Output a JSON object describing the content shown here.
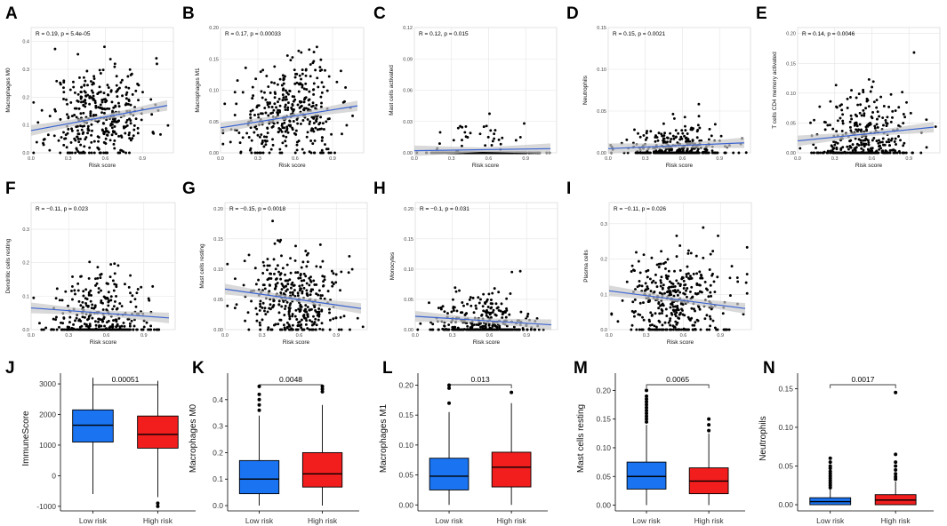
{
  "chart_data": [
    {
      "id": "A",
      "type": "scatter",
      "ylabel": "Macrophages M0",
      "xlabel": "Risk score",
      "stat": "R = 0.19, p = 5.4e-05",
      "xticks": [
        "0.0",
        "0.3",
        "0.6",
        "0.9"
      ],
      "yticks": [
        "0.0",
        "0.1",
        "0.2",
        "0.3",
        "0.4"
      ],
      "xlim": [
        0,
        1.15
      ],
      "ylim": [
        0,
        0.45
      ],
      "fit": [
        [
          0,
          0.08
        ],
        [
          1.1,
          0.17
        ]
      ],
      "dist": {
        "type": "lin",
        "base": 0.1,
        "slope": 0.06,
        "sd": 0.09,
        "n": 380,
        "seed": 11
      }
    },
    {
      "id": "B",
      "type": "scatter",
      "ylabel": "Macrophages M1",
      "xlabel": "Risk score",
      "stat": "R = 0.17, p = 0.00033",
      "xticks": [
        "0.0",
        "0.3",
        "0.6",
        "0.9"
      ],
      "yticks": [
        "0.00",
        "0.05",
        "0.10",
        "0.15",
        "0.20"
      ],
      "xlim": [
        0,
        1.15
      ],
      "ylim": [
        0,
        0.2
      ],
      "fit": [
        [
          0,
          0.04
        ],
        [
          1.1,
          0.075
        ]
      ],
      "dist": {
        "type": "lin",
        "base": 0.045,
        "slope": 0.03,
        "sd": 0.04,
        "n": 380,
        "seed": 22
      }
    },
    {
      "id": "C",
      "type": "scatter",
      "ylabel": "Mast cells activated",
      "xlabel": "Risk score",
      "stat": "R = 0.12, p = 0.015",
      "xticks": [
        "0.0",
        "0.3",
        "0.6",
        "0.9"
      ],
      "yticks": [
        "0.00",
        "0.03",
        "0.06",
        "0.09",
        "0.12"
      ],
      "xlim": [
        0,
        1.15
      ],
      "ylim": [
        0,
        0.12
      ],
      "fit": [
        [
          0,
          0.002
        ],
        [
          1.1,
          0.004
        ]
      ],
      "dist": {
        "type": "zero",
        "pz": 0.9,
        "sd": 0.02,
        "n": 380,
        "seed": 33
      }
    },
    {
      "id": "D",
      "type": "scatter",
      "ylabel": "Neutrophils",
      "xlabel": "Risk score",
      "stat": "R = 0.15, p = 0.0021",
      "xticks": [
        "0.0",
        "0.3",
        "0.6",
        "0.9"
      ],
      "yticks": [
        "0.00",
        "0.05",
        "0.10",
        "0.15"
      ],
      "xlim": [
        0,
        1.15
      ],
      "ylim": [
        0,
        0.15
      ],
      "fit": [
        [
          0,
          0.005
        ],
        [
          1.1,
          0.012
        ]
      ],
      "dist": {
        "type": "zero",
        "pz": 0.4,
        "sd": 0.016,
        "n": 380,
        "seed": 44
      }
    },
    {
      "id": "E",
      "type": "scatter",
      "ylabel": "T cells CD4 memory activated",
      "xlabel": "Risk score",
      "stat": "R = 0.14, p = 0.0046",
      "xticks": [
        "0.0",
        "0.3",
        "0.6",
        "0.9"
      ],
      "yticks": [
        "0.00",
        "0.05",
        "0.10",
        "0.15",
        "0.20"
      ],
      "xlim": [
        0,
        1.15
      ],
      "ylim": [
        0,
        0.21
      ],
      "fit": [
        [
          0,
          0.02
        ],
        [
          1.1,
          0.043
        ]
      ],
      "dist": {
        "type": "zero",
        "pz": 0.3,
        "sd": 0.05,
        "n": 380,
        "seed": 55
      }
    },
    {
      "id": "F",
      "type": "scatter",
      "ylabel": "Dendritic cells resting",
      "xlabel": "Risk score",
      "stat": "R = −0.11, p = 0.023",
      "xticks": [
        "0.0",
        "0.3",
        "0.6",
        "0.9"
      ],
      "yticks": [
        "0.0",
        "0.1",
        "0.2",
        "0.3"
      ],
      "xlim": [
        0,
        1.15
      ],
      "ylim": [
        0,
        0.38
      ],
      "fit": [
        [
          0,
          0.065
        ],
        [
          1.1,
          0.035
        ]
      ],
      "dist": {
        "type": "zero",
        "pz": 0.35,
        "sd": 0.08,
        "n": 380,
        "seed": 66
      }
    },
    {
      "id": "G",
      "type": "scatter",
      "ylabel": "Mast cells resting",
      "xlabel": "Risk score",
      "stat": "R = −0.15, p = 0.0018",
      "xticks": [
        "0.0",
        "0.3",
        "0.6",
        "0.9"
      ],
      "yticks": [
        "0.00",
        "0.05",
        "0.10",
        "0.15",
        "0.20"
      ],
      "xlim": [
        0,
        1.15
      ],
      "ylim": [
        0,
        0.21
      ],
      "fit": [
        [
          0,
          0.067
        ],
        [
          1.1,
          0.035
        ]
      ],
      "dist": {
        "type": "lin",
        "base": 0.065,
        "slope": -0.03,
        "sd": 0.04,
        "n": 380,
        "seed": 77
      }
    },
    {
      "id": "H",
      "type": "scatter",
      "ylabel": "Monocytes",
      "xlabel": "Risk score",
      "stat": "R = −0.1, p = 0.031",
      "xticks": [
        "0.0",
        "0.3",
        "0.6",
        "0.9"
      ],
      "yticks": [
        "0.00",
        "0.05",
        "0.10",
        "0.15",
        "0.20"
      ],
      "xlim": [
        0,
        1.15
      ],
      "ylim": [
        0,
        0.21
      ],
      "fit": [
        [
          0,
          0.022
        ],
        [
          1.1,
          0.008
        ]
      ],
      "dist": {
        "type": "zero",
        "pz": 0.45,
        "sd": 0.03,
        "n": 380,
        "seed": 88
      }
    },
    {
      "id": "I",
      "type": "scatter",
      "ylabel": "Plasma cells",
      "xlabel": "Risk score",
      "stat": "R = −0.11, p = 0.026",
      "xticks": [
        "0.0",
        "0.3",
        "0.6",
        "0.9"
      ],
      "yticks": [
        "0.0",
        "0.1",
        "0.2",
        "0.3"
      ],
      "xlim": [
        0,
        1.15
      ],
      "ylim": [
        0,
        0.36
      ],
      "fit": [
        [
          0,
          0.11
        ],
        [
          1.1,
          0.06
        ]
      ],
      "dist": {
        "type": "lin",
        "base": 0.1,
        "slope": -0.04,
        "sd": 0.07,
        "n": 380,
        "seed": 99
      }
    },
    {
      "id": "J",
      "type": "box",
      "ylabel": "ImmuneScore",
      "categories": [
        "Low risk",
        "High risk"
      ],
      "pvalue": "0.00051",
      "yticks": [
        "-1000",
        "0",
        "1000",
        "2000",
        "3000"
      ],
      "ylim": [
        -1150,
        3350
      ],
      "boxes": [
        {
          "min": -600,
          "q1": 1100,
          "median": 1650,
          "q3": 2150,
          "max": 3200,
          "outliers": []
        },
        {
          "min": -700,
          "q1": 900,
          "median": 1350,
          "q3": 1950,
          "max": 3100,
          "outliers": [
            -900,
            -1000
          ]
        }
      ]
    },
    {
      "id": "K",
      "type": "box",
      "ylabel": "Macrophages M0",
      "categories": [
        "Low risk",
        "High risk"
      ],
      "pvalue": "0.0048",
      "yticks": [
        "0.0",
        "0.1",
        "0.2",
        "0.3",
        "0.4"
      ],
      "ylim": [
        -0.02,
        0.5
      ],
      "boxes": [
        {
          "min": 0,
          "q1": 0.045,
          "median": 0.1,
          "q3": 0.17,
          "max": 0.34,
          "outliers": [
            0.36,
            0.38,
            0.4,
            0.42,
            0.45
          ]
        },
        {
          "min": 0,
          "q1": 0.07,
          "median": 0.12,
          "q3": 0.2,
          "max": 0.38,
          "outliers": [
            0.43,
            0.44,
            0.45
          ]
        }
      ]
    },
    {
      "id": "L",
      "type": "box",
      "ylabel": "Macrophages M1",
      "categories": [
        "Low risk",
        "High risk"
      ],
      "pvalue": "0.013",
      "yticks": [
        "0.00",
        "0.05",
        "0.10",
        "0.15",
        "0.20"
      ],
      "ylim": [
        -0.01,
        0.22
      ],
      "boxes": [
        {
          "min": 0,
          "q1": 0.025,
          "median": 0.048,
          "q3": 0.078,
          "max": 0.155,
          "outliers": [
            0.17,
            0.195,
            0.2
          ]
        },
        {
          "min": 0,
          "q1": 0.03,
          "median": 0.063,
          "q3": 0.088,
          "max": 0.17,
          "outliers": [
            0.188
          ]
        }
      ]
    },
    {
      "id": "M",
      "type": "box",
      "ylabel": "Mast cells resting",
      "categories": [
        "Low risk",
        "High risk"
      ],
      "pvalue": "0.0065",
      "yticks": [
        "0.00",
        "0.05",
        "0.10",
        "0.15",
        "0.20"
      ],
      "ylim": [
        -0.01,
        0.23
      ],
      "boxes": [
        {
          "min": 0,
          "q1": 0.028,
          "median": 0.05,
          "q3": 0.075,
          "max": 0.14,
          "outliers": [
            0.145,
            0.15,
            0.155,
            0.16,
            0.165,
            0.17,
            0.175,
            0.18,
            0.185,
            0.19,
            0.2
          ]
        },
        {
          "min": 0,
          "q1": 0.02,
          "median": 0.042,
          "q3": 0.065,
          "max": 0.125,
          "outliers": [
            0.13,
            0.14,
            0.15
          ]
        }
      ]
    },
    {
      "id": "N",
      "type": "box",
      "ylabel": "Neutrophils",
      "categories": [
        "Low risk",
        "High risk"
      ],
      "pvalue": "0.0017",
      "yticks": [
        "0.00",
        "0.05",
        "0.10",
        "0.15"
      ],
      "ylim": [
        -0.008,
        0.17
      ],
      "boxes": [
        {
          "min": 0,
          "q1": 0,
          "median": 0.004,
          "q3": 0.009,
          "max": 0.02,
          "outliers": [
            0.022,
            0.025,
            0.028,
            0.031,
            0.034,
            0.037,
            0.04,
            0.043,
            0.047,
            0.05,
            0.055,
            0.06
          ]
        },
        {
          "min": 0,
          "q1": 0,
          "median": 0.006,
          "q3": 0.013,
          "max": 0.03,
          "outliers": [
            0.033,
            0.036,
            0.04,
            0.045,
            0.05,
            0.055,
            0.065,
            0.145
          ]
        }
      ]
    }
  ],
  "panel_labels": [
    "A",
    "B",
    "C",
    "D",
    "E",
    "F",
    "G",
    "H",
    "I",
    "J",
    "K",
    "L",
    "M",
    "N"
  ],
  "colors": {
    "points": "#000000",
    "fit_line": "#3a63d1",
    "ci_band": "#c9c9c9",
    "grid": "#e4e4e4",
    "box_low": "#1a73f0",
    "box_high": "#f21d1d"
  }
}
